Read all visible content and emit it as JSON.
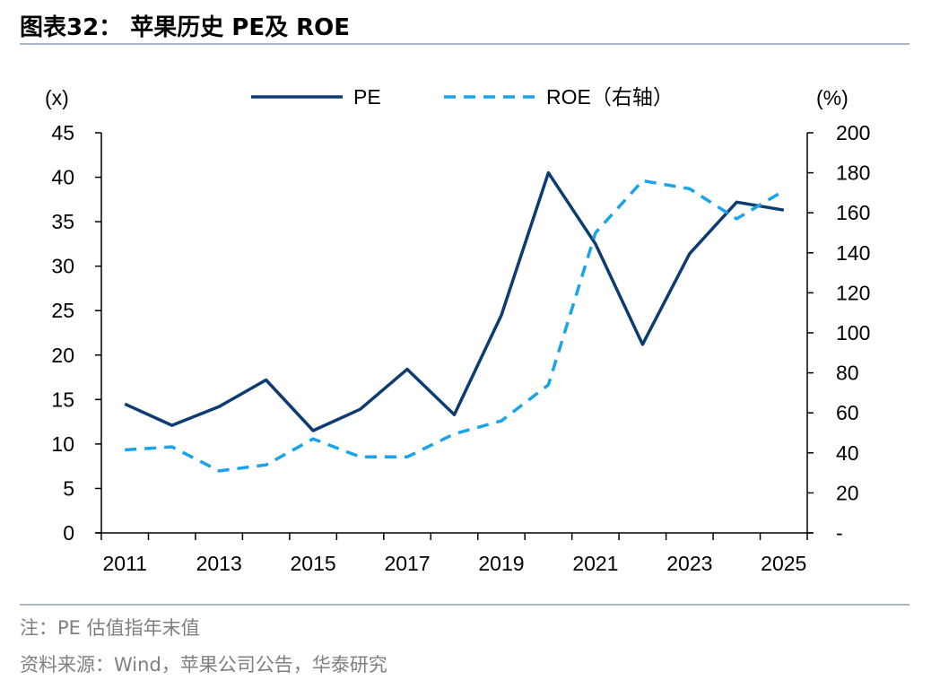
{
  "header": {
    "title": "图表32： 苹果历史 PE及 ROE"
  },
  "footer": {
    "note": "注：PE 估值指年末值",
    "source": "资料来源：Wind，苹果公司公告，华泰研究"
  },
  "chart_data": {
    "type": "line",
    "legend_position": "top-center",
    "grid": false,
    "left_axis_unit": "(x)",
    "right_axis_unit": "(%)",
    "x_tick_labels": [
      "2011",
      "2013",
      "2015",
      "2017",
      "2019",
      "2021",
      "2023",
      "2025"
    ],
    "y_left": {
      "min": 0,
      "max": 45,
      "ticks": [
        0,
        5,
        10,
        15,
        20,
        25,
        30,
        35,
        40,
        45
      ]
    },
    "y_right": {
      "min": 0,
      "max": 200,
      "tick_labels": [
        "-",
        "20",
        "40",
        "60",
        "80",
        "100",
        "120",
        "140",
        "160",
        "180",
        "200"
      ]
    },
    "x": [
      2011,
      2012,
      2013,
      2014,
      2015,
      2016,
      2017,
      2018,
      2019,
      2020,
      2021,
      2022,
      2023,
      2024,
      2025
    ],
    "series": [
      {
        "name": "PE",
        "axis": "left",
        "style": "solid",
        "color": "#0d3b72",
        "values": [
          14.5,
          12.1,
          14.2,
          17.2,
          11.5,
          13.9,
          18.4,
          13.3,
          24.5,
          40.5,
          32.5,
          21.2,
          31.4,
          37.2,
          36.3
        ]
      },
      {
        "name": "ROE（右轴）",
        "axis": "right",
        "style": "dashed",
        "color": "#1aa3e8",
        "values": [
          41.5,
          43,
          31,
          34,
          47,
          38,
          38,
          49.5,
          56,
          74,
          150,
          176,
          172,
          157,
          171
        ]
      }
    ]
  }
}
